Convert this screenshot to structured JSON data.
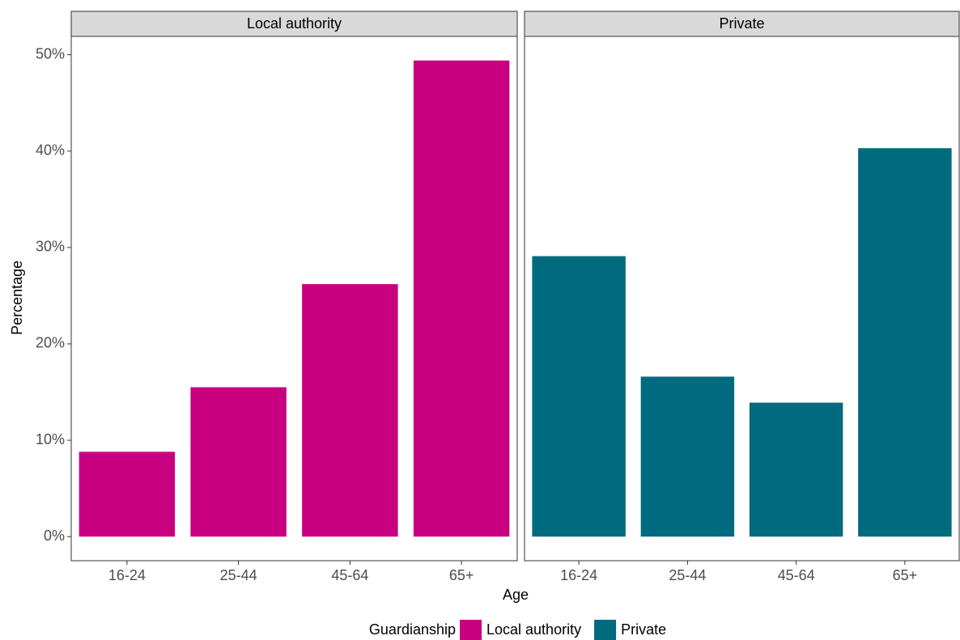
{
  "chart_data": {
    "type": "bar",
    "x_label": "Age",
    "y_label": "Percentage",
    "legend_title": "Guardianship",
    "categories": [
      "16-24",
      "25-44",
      "45-64",
      "65+"
    ],
    "series": [
      {
        "name": "Local authority",
        "color": "#c8007f",
        "values": [
          8.8,
          15.5,
          26.2,
          49.4
        ]
      },
      {
        "name": "Private",
        "color": "#006a7e",
        "values": [
          29.1,
          16.6,
          13.9,
          40.3
        ]
      }
    ],
    "ylim": [
      -2.5,
      51.9
    ],
    "yticks": [
      {
        "value": 0,
        "label": "0%"
      },
      {
        "value": 10,
        "label": "10%"
      },
      {
        "value": 20,
        "label": "20%"
      },
      {
        "value": 30,
        "label": "30%"
      },
      {
        "value": 40,
        "label": "40%"
      },
      {
        "value": 50,
        "label": "50%"
      }
    ],
    "legend_position": "bottom"
  }
}
